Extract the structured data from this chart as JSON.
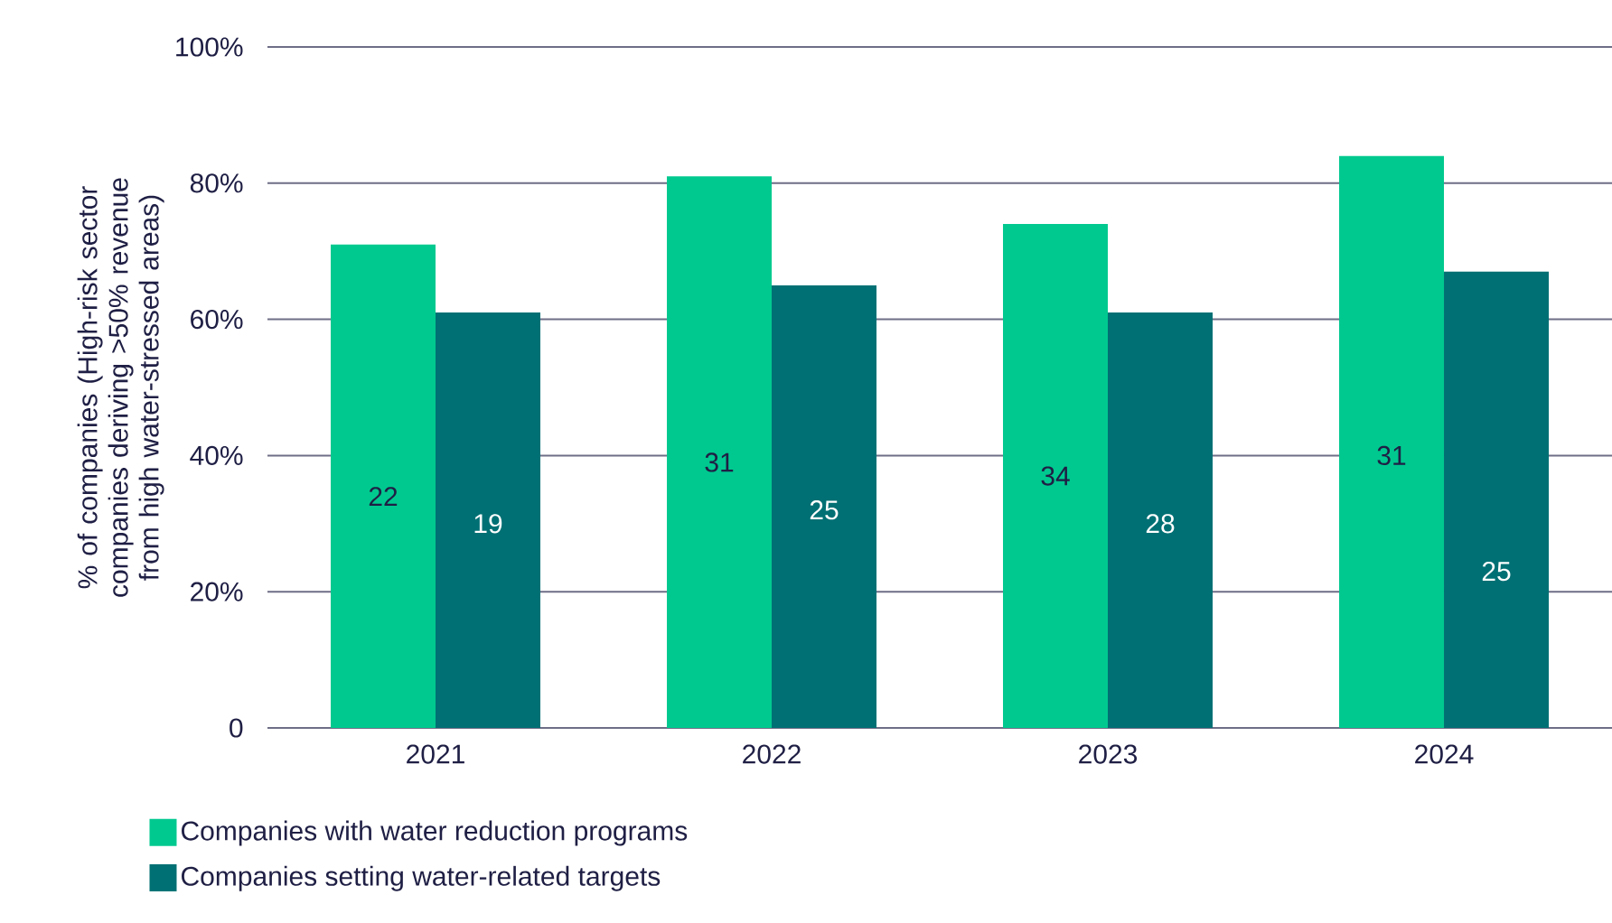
{
  "chart_data": {
    "type": "bar",
    "ylabel": "% of companies (High-risk sector companies deriving >50% revenue from high water-stressed areas)",
    "categories": [
      "2021",
      "2022",
      "2023",
      "2024"
    ],
    "series": [
      {
        "name": "Companies with water reduction programs",
        "color": "#00c98f",
        "values": [
          71,
          81,
          74,
          84
        ]
      },
      {
        "name": "Companies setting water-related targets",
        "color": "#007074",
        "values": [
          61,
          65,
          61,
          67
        ]
      }
    ],
    "annotations": [
      {
        "text": "22",
        "x": "2021",
        "y": 34
      },
      {
        "text": "19",
        "x": "2021",
        "y": 30
      },
      {
        "text": "31",
        "x": "2022",
        "y": 39
      },
      {
        "text": "25",
        "x": "2022",
        "y": 32
      },
      {
        "text": "34",
        "x": "2023",
        "y": 37
      },
      {
        "text": "28",
        "x": "2023",
        "y": 30
      },
      {
        "text": "31",
        "x": "2024",
        "y": 40
      },
      {
        "text": "25",
        "x": "2024",
        "y": 23
      }
    ],
    "ylim": [
      0,
      100
    ],
    "yticks": [
      0,
      {
        "value": 20,
        "label": "20%"
      },
      {
        "value": 40,
        "label": "40%"
      },
      {
        "value": 60,
        "label": "60%"
      },
      {
        "value": 80,
        "label": "80%"
      },
      {
        "value": 100,
        "label": "100%"
      }
    ],
    "grid": "y",
    "legend": "bottom left"
  }
}
